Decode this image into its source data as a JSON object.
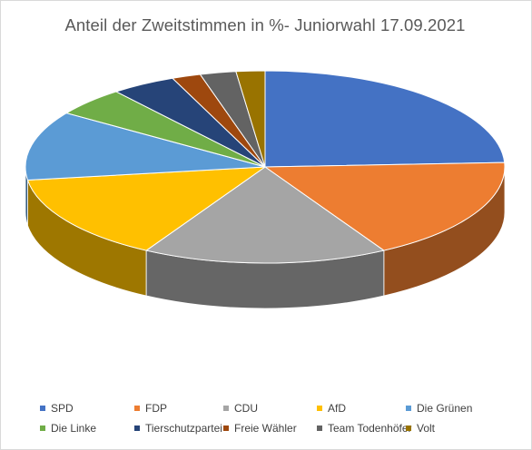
{
  "chart_data": {
    "type": "pie",
    "title": "Anteil der Zweitstimmen in %- Juniorwahl 17.09.2021",
    "style": "3d",
    "legend_position": "bottom",
    "categories": [
      "SPD",
      "FDP",
      "CDU",
      "AfD",
      "Die Grünen",
      "Die Linke",
      "Tierschutzpartei",
      "Freie Wähler",
      "Team Todenhöfer",
      "Volt"
    ],
    "values": [
      25,
      18,
      17,
      15,
      12,
      5,
      4.5,
      2,
      2.5,
      2
    ],
    "colors": [
      "#4472C4",
      "#ED7D31",
      "#A5A5A5",
      "#FFC000",
      "#5B9BD5",
      "#70AD47",
      "#264478",
      "#9E480E",
      "#636363",
      "#997300"
    ]
  }
}
